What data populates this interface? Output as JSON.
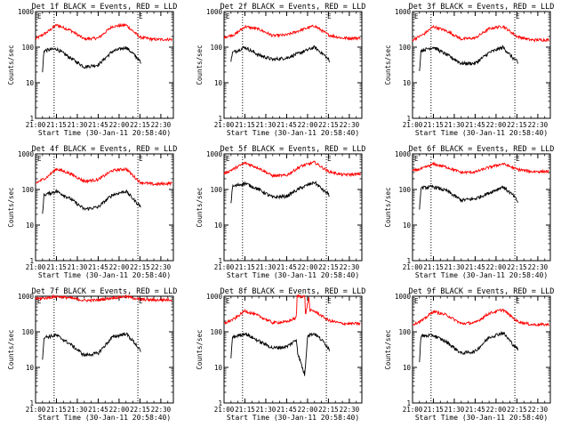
{
  "chart_data": {
    "type": "line",
    "log_y": true,
    "ylim": [
      1,
      1000
    ],
    "y_ticks": [
      1,
      10,
      100,
      1000
    ],
    "y_tick_labels": [
      "1",
      "10",
      "100",
      "1000"
    ],
    "x_ticks": [
      0,
      15,
      30,
      45,
      60,
      75,
      90
    ],
    "x_tick_labels": [
      "21:00",
      "21:15",
      "21:30",
      "21:45",
      "22:00",
      "22:15",
      "22:30"
    ],
    "xlim": [
      0,
      99
    ],
    "ylabel": "Counts/sec",
    "xlabel": "Start Time (30-Jan-11 20:58:40)",
    "vlines": [
      13.3,
      73.5
    ],
    "flag_label": "E",
    "colors": {
      "events": "#000000",
      "lld": "#ff0000"
    },
    "panels": [
      {
        "title": "Det 1f BLACK = Events, RED = LLD",
        "lld": {
          "x": [
            0,
            8,
            15,
            25,
            35,
            45,
            55,
            65,
            75,
            85,
            98
          ],
          "y": [
            170,
            260,
            420,
            300,
            170,
            180,
            380,
            420,
            190,
            165,
            165
          ]
        },
        "events": {
          "x": [
            5,
            6,
            15,
            25,
            35,
            45,
            55,
            65,
            72,
            75,
            76
          ],
          "y": [
            20,
            80,
            90,
            50,
            28,
            32,
            75,
            100,
            55,
            40,
            30
          ]
        }
      },
      {
        "title": "Det 2f BLACK = Events, RED = LLD",
        "lld": {
          "x": [
            0,
            8,
            15,
            25,
            35,
            45,
            55,
            65,
            75,
            85,
            98
          ],
          "y": [
            190,
            230,
            380,
            320,
            210,
            220,
            300,
            400,
            220,
            180,
            180
          ]
        },
        "events": {
          "x": [
            5,
            6,
            15,
            25,
            35,
            45,
            55,
            65,
            72,
            75,
            76
          ],
          "y": [
            40,
            70,
            100,
            60,
            45,
            50,
            70,
            100,
            60,
            45,
            35
          ]
        }
      },
      {
        "title": "Det 3f BLACK = Events, RED = LLD",
        "lld": {
          "x": [
            0,
            8,
            15,
            25,
            35,
            45,
            55,
            65,
            75,
            85,
            98
          ],
          "y": [
            160,
            230,
            380,
            280,
            170,
            180,
            330,
            390,
            200,
            160,
            160
          ]
        },
        "events": {
          "x": [
            5,
            6,
            15,
            25,
            35,
            45,
            55,
            65,
            72,
            75,
            76
          ],
          "y": [
            20,
            80,
            100,
            60,
            35,
            35,
            70,
            100,
            50,
            40,
            30
          ]
        }
      },
      {
        "title": "Det 4f BLACK = Events, RED = LLD",
        "lld": {
          "x": [
            0,
            8,
            15,
            25,
            35,
            45,
            55,
            65,
            75,
            85,
            98
          ],
          "y": [
            150,
            220,
            380,
            280,
            170,
            190,
            340,
            380,
            160,
            140,
            150
          ]
        },
        "events": {
          "x": [
            5,
            6,
            15,
            25,
            35,
            45,
            55,
            65,
            72,
            75,
            76
          ],
          "y": [
            20,
            70,
            90,
            55,
            28,
            32,
            70,
            90,
            45,
            35,
            30
          ]
        }
      },
      {
        "title": "Det 5f BLACK = Events, RED = LLD",
        "lld": {
          "x": [
            0,
            8,
            15,
            25,
            35,
            45,
            55,
            65,
            75,
            85,
            98
          ],
          "y": [
            280,
            400,
            560,
            400,
            240,
            250,
            450,
            580,
            320,
            260,
            270
          ]
        },
        "events": {
          "x": [
            5,
            6,
            15,
            25,
            35,
            45,
            55,
            65,
            72,
            75,
            76
          ],
          "y": [
            40,
            120,
            150,
            100,
            60,
            65,
            110,
            160,
            90,
            75,
            65
          ]
        }
      },
      {
        "title": "Det 6f BLACK = Events, RED = LLD",
        "lld": {
          "x": [
            0,
            8,
            15,
            25,
            35,
            45,
            55,
            65,
            75,
            85,
            98
          ],
          "y": [
            330,
            400,
            520,
            420,
            300,
            310,
            420,
            530,
            370,
            320,
            320
          ]
        },
        "events": {
          "x": [
            5,
            6,
            15,
            25,
            35,
            45,
            55,
            65,
            72,
            75,
            76
          ],
          "y": [
            25,
            110,
            120,
            90,
            50,
            55,
            80,
            120,
            70,
            50,
            40
          ]
        }
      },
      {
        "title": "Det 7f BLACK = Events, RED = LLD",
        "lld": {
          "x": [
            0,
            8,
            15,
            25,
            35,
            45,
            55,
            65,
            75,
            85,
            98
          ],
          "y": [
            850,
            900,
            980,
            900,
            760,
            780,
            900,
            980,
            820,
            780,
            800
          ]
        },
        "events": {
          "x": [
            5,
            6,
            15,
            25,
            35,
            45,
            55,
            65,
            72,
            75,
            76
          ],
          "y": [
            15,
            70,
            80,
            45,
            22,
            25,
            70,
            90,
            45,
            30,
            25
          ]
        }
      },
      {
        "title": "Det 8f BLACK = Events, RED = LLD",
        "lld": {
          "x": [
            0,
            8,
            15,
            25,
            35,
            45,
            52,
            52.5,
            55,
            58,
            58.5,
            61,
            61.5,
            65,
            75,
            85,
            98
          ],
          "y": [
            170,
            240,
            390,
            280,
            180,
            190,
            250,
            1000,
            1000,
            1000,
            300,
            1000,
            400,
            380,
            210,
            170,
            170
          ]
        },
        "events": {
          "x": [
            5,
            6,
            15,
            25,
            35,
            45,
            52,
            53,
            58,
            60,
            65,
            72,
            75,
            76
          ],
          "y": [
            18,
            70,
            90,
            55,
            35,
            38,
            60,
            25,
            6,
            80,
            90,
            50,
            35,
            28
          ]
        }
      },
      {
        "title": "Det 9f BLACK = Events, RED = LLD",
        "lld": {
          "x": [
            0,
            8,
            15,
            25,
            35,
            45,
            55,
            65,
            75,
            85,
            98
          ],
          "y": [
            160,
            220,
            380,
            290,
            170,
            180,
            330,
            420,
            200,
            160,
            160
          ]
        },
        "events": {
          "x": [
            5,
            6,
            15,
            25,
            35,
            45,
            55,
            65,
            72,
            75,
            76
          ],
          "y": [
            15,
            75,
            80,
            50,
            25,
            28,
            70,
            95,
            45,
            35,
            30
          ]
        }
      }
    ]
  }
}
